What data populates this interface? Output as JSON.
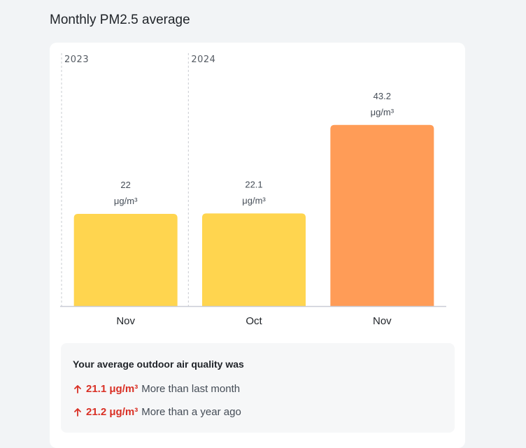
{
  "page": {
    "title": "Monthly PM2.5 average"
  },
  "chart_data": {
    "type": "bar",
    "title": "Monthly PM2.5 average",
    "year_groups": [
      {
        "label": "2023",
        "start_index": 0
      },
      {
        "label": "2024",
        "start_index": 1
      }
    ],
    "categories": [
      "Nov",
      "Oct",
      "Nov"
    ],
    "values": [
      22,
      22.1,
      43.2
    ],
    "value_labels": [
      "22",
      "22.1",
      "43.2"
    ],
    "unit": "μg/m³",
    "colors": [
      "#ffd54f",
      "#ffd54f",
      "#ff9c57"
    ],
    "ylim": [
      0,
      52
    ],
    "grid": false,
    "xlabel": "",
    "ylabel": ""
  },
  "summary": {
    "title": "Your average outdoor air quality was",
    "rows": [
      {
        "value": "21.1 μg/m³",
        "description": "More than last month",
        "icon": "arrow-up-icon"
      },
      {
        "value": "21.2 μg/m³",
        "description": "More than a year ago",
        "icon": "arrow-up-icon"
      }
    ],
    "accent_color": "#d93025"
  }
}
